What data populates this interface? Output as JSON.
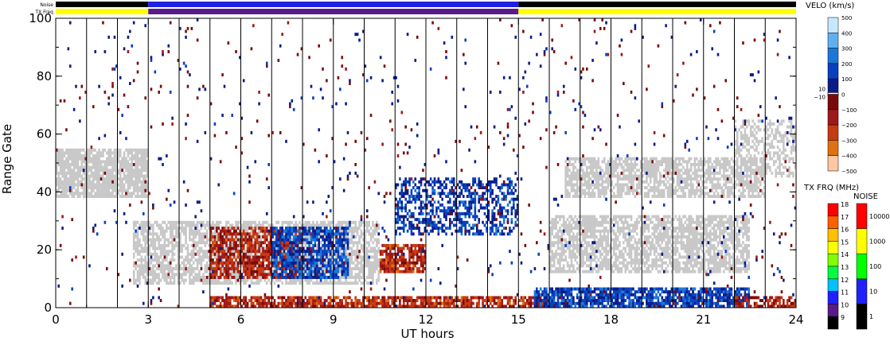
{
  "chart_data": {
    "type": "heatmap",
    "xlabel": "UT hours",
    "ylabel": "Range Gate",
    "xlim": [
      0,
      24
    ],
    "ylim": [
      0,
      100
    ],
    "x_ticks": [
      "0",
      "3",
      "6",
      "9",
      "12",
      "15",
      "18",
      "21",
      "24"
    ],
    "y_ticks": [
      "0",
      "20",
      "40",
      "60",
      "80",
      "100"
    ],
    "hour_gridlines": true,
    "header_strips": [
      {
        "label": "Noise",
        "segments": [
          {
            "start": 0,
            "end": 3,
            "value": "1",
            "color": "#000000"
          },
          {
            "start": 3,
            "end": 15,
            "value": "10",
            "color": "#2020e0"
          },
          {
            "start": 15,
            "end": 24,
            "value": "1",
            "color": "#000000"
          }
        ]
      },
      {
        "label": "TX Freq",
        "segments": [
          {
            "start": 0,
            "end": 3,
            "value": "15",
            "color": "#ffff00"
          },
          {
            "start": 3,
            "end": 15,
            "value": "10",
            "color": "#5a1a8a"
          },
          {
            "start": 15,
            "end": 24,
            "value": "15",
            "color": "#ffff00"
          }
        ]
      }
    ],
    "velocity_scale": {
      "title": "VELO (km/s)",
      "ticks": [
        "500",
        "400",
        "300",
        "200",
        "100",
        "0",
        "−100",
        "−200",
        "−300",
        "−400",
        "−500"
      ],
      "zero_band_ticks": [
        "10",
        "−10"
      ],
      "colors": [
        "#c8e8ff",
        "#60b0f0",
        "#1c78d8",
        "#0840c0",
        "#0a1c88",
        "#ffffff",
        "#7a0a0a",
        "#a01818",
        "#c83a10",
        "#e07010",
        "#ffc8a0"
      ]
    },
    "txfreq_scale": {
      "title": "TX FRQ (MHz)",
      "ticks": [
        "18",
        "17",
        "16",
        "15",
        "14",
        "13",
        "12",
        "11",
        "10",
        "9"
      ],
      "colors": [
        "#ff0000",
        "#ff6000",
        "#ffc000",
        "#ffff00",
        "#80ff00",
        "#00ff40",
        "#00c0ff",
        "#2020ff",
        "#5a1a8a",
        "#000000"
      ]
    },
    "noise_scale": {
      "title": "NOISE",
      "ticks": [
        "10000",
        "1000",
        "100",
        "10",
        "1"
      ],
      "colors": [
        "#ff0000",
        "#ffff00",
        "#00ff00",
        "#2020ff",
        "#000000"
      ]
    },
    "ground_scatter_color": "#c8c8c8",
    "echo_regions": [
      {
        "name": "ground scatter upper early",
        "type": "ground",
        "x": [
          0.0,
          3.0
        ],
        "y": [
          38,
          55
        ],
        "density": 0.85
      },
      {
        "name": "ground scatter lower mid",
        "type": "ground",
        "x": [
          2.5,
          10.5
        ],
        "y": [
          8,
          30
        ],
        "density": 0.7
      },
      {
        "name": "ground scatter upper late",
        "type": "ground",
        "x": [
          16.5,
          23.0
        ],
        "y": [
          38,
          52
        ],
        "density": 0.7
      },
      {
        "name": "ground scatter lower late",
        "type": "ground",
        "x": [
          16.0,
          22.5
        ],
        "y": [
          12,
          32
        ],
        "density": 0.7
      },
      {
        "name": "ground scatter high late",
        "type": "ground",
        "x": [
          22.0,
          24.0
        ],
        "y": [
          45,
          65
        ],
        "density": 0.5
      },
      {
        "name": "receding echoes mid",
        "type": "velocity",
        "x": [
          5.0,
          8.0
        ],
        "y": [
          10,
          28
        ],
        "value": -180,
        "density": 0.7
      },
      {
        "name": "approaching echoes 7-9",
        "type": "velocity",
        "x": [
          7.0,
          9.5
        ],
        "y": [
          10,
          28
        ],
        "value": 150,
        "density": 0.7
      },
      {
        "name": "receding echoes 10-12",
        "type": "velocity",
        "x": [
          10.5,
          12.0
        ],
        "y": [
          12,
          22
        ],
        "value": -200,
        "density": 0.8
      },
      {
        "name": "approaching echoes 11-15",
        "type": "velocity",
        "x": [
          11.0,
          15.0
        ],
        "y": [
          25,
          45
        ],
        "value": 120,
        "density": 0.5
      },
      {
        "name": "near range receding",
        "type": "velocity",
        "x": [
          5.0,
          16.0
        ],
        "y": [
          0,
          4
        ],
        "value": -200,
        "density": 0.8
      },
      {
        "name": "near range approaching",
        "type": "velocity",
        "x": [
          15.5,
          22.5
        ],
        "y": [
          0,
          7
        ],
        "value": 150,
        "density": 0.8
      },
      {
        "name": "receding band 22-24",
        "type": "velocity",
        "x": [
          22.0,
          24.0
        ],
        "y": [
          0,
          4
        ],
        "value": -150,
        "density": 0.6
      },
      {
        "name": "sparse noise",
        "type": "velocity",
        "x": [
          0.0,
          24.0
        ],
        "y": [
          0,
          100
        ],
        "value": 0,
        "density": 0.02
      }
    ]
  }
}
